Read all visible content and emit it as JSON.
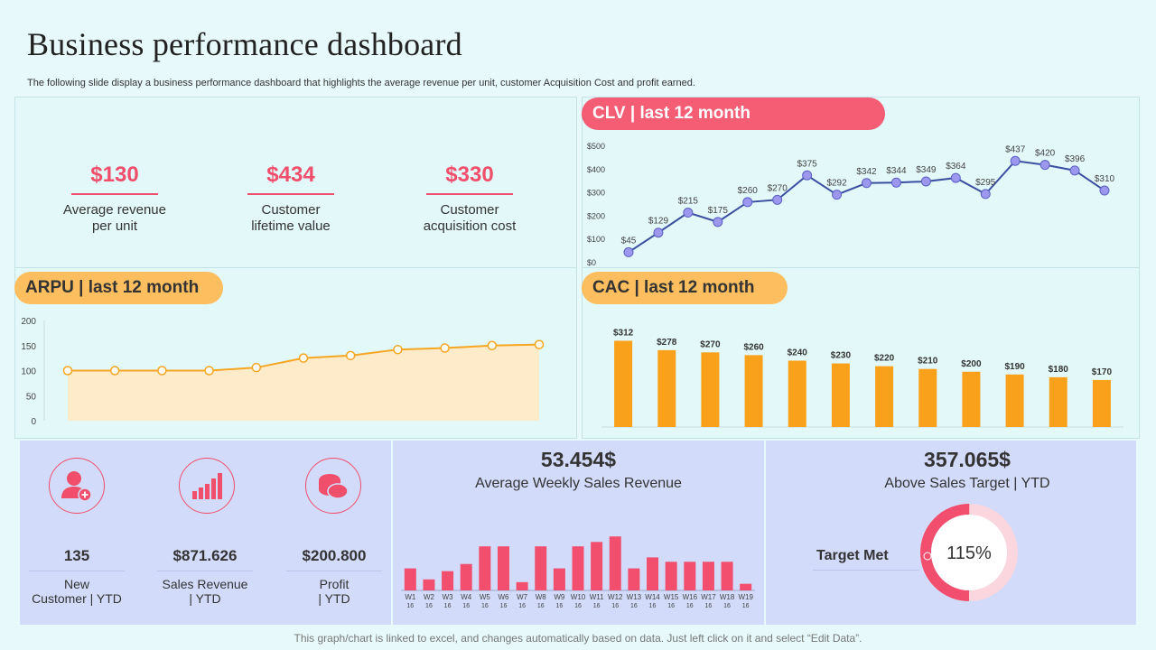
{
  "title": "Business performance dashboard",
  "subtitle": "The following slide display a business performance dashboard that highlights the average revenue per unit, customer Acquisition Cost and profit earned.",
  "kpis": [
    {
      "value": "$130",
      "label1": "Average revenue",
      "label2": "per unit"
    },
    {
      "value": "$434",
      "label1": "Customer",
      "label2": "lifetime value"
    },
    {
      "value": "$330",
      "label1": "Customer",
      "label2": "acquisition cost"
    }
  ],
  "colors": {
    "accent_red": "#f45d74",
    "accent_orange": "#fcbe5e",
    "line_blue": "#3a4fa0",
    "bar_orange": "#f9a11b",
    "arpu_line": "#f5a623"
  },
  "stats": [
    {
      "value": "135",
      "label1": "New",
      "label2": "Customer | YTD",
      "icon": "user-add-icon"
    },
    {
      "value": "$871.626",
      "label1": "Sales Revenue",
      "label2": "| YTD",
      "icon": "bar-chart-icon"
    },
    {
      "value": "$200.800",
      "label1": "Profit",
      "label2": "| YTD",
      "icon": "coins-icon"
    }
  ],
  "weekly": {
    "value": "53.454$",
    "label": "Average Weekly Sales Revenue"
  },
  "target": {
    "value": "357.065$",
    "label": "Above Sales Target | YTD",
    "met_label": "Target Met",
    "percent_text": "115%",
    "percent": 115
  },
  "footer": "This graph/chart is linked to excel, and changes automatically based on data. Just left click on it and select “Edit Data”.",
  "chart_data": [
    {
      "id": "clv",
      "type": "line",
      "title": "CLV | last 12 month",
      "values": [
        45,
        129,
        215,
        175,
        260,
        270,
        375,
        292,
        342,
        344,
        349,
        364,
        295,
        437,
        420,
        396,
        310
      ],
      "labels": [
        "$45",
        "$129",
        "$215",
        "$175",
        "$260",
        "$270",
        "$375",
        "$292",
        "$342",
        "$344",
        "$349",
        "$364",
        "$295",
        "$437",
        "$420",
        "$396",
        "$310"
      ],
      "yticks": [
        "$0",
        "$100",
        "$200",
        "$300",
        "$400",
        "$500"
      ],
      "ylim": [
        0,
        500
      ]
    },
    {
      "id": "arpu",
      "type": "area",
      "title": "ARPU | last 12 month",
      "values": [
        100,
        100,
        100,
        100,
        106,
        125,
        130,
        142,
        145,
        150,
        152
      ],
      "yticks": [
        "0",
        "50",
        "100",
        "150",
        "200"
      ],
      "ylim": [
        0,
        200
      ]
    },
    {
      "id": "cac",
      "type": "bar",
      "title": "CAC | last 12 month",
      "values": [
        312,
        278,
        270,
        260,
        240,
        230,
        220,
        210,
        200,
        190,
        180,
        170
      ],
      "labels": [
        "$312",
        "$278",
        "$270",
        "$260",
        "$240",
        "$230",
        "$220",
        "$210",
        "$200",
        "$190",
        "$180",
        "$170"
      ],
      "ylim": [
        0,
        320
      ]
    },
    {
      "id": "weekly",
      "type": "bar",
      "title": "Average Weekly Sales Revenue",
      "categories": [
        "W1",
        "W2",
        "W3",
        "W4",
        "W5",
        "W6",
        "W7",
        "W8",
        "W9",
        "W10",
        "W11",
        "W12",
        "W13",
        "W14",
        "W15",
        "W16",
        "W17",
        "W18",
        "W19"
      ],
      "category_sub": "16",
      "values": [
        40,
        20,
        35,
        48,
        80,
        80,
        15,
        80,
        40,
        80,
        88,
        98,
        40,
        60,
        52,
        52,
        52,
        52,
        12
      ],
      "ylim": [
        0,
        100
      ]
    },
    {
      "id": "target",
      "type": "pie",
      "title": "Target Met",
      "values": [
        115
      ],
      "labels": [
        "115%"
      ]
    }
  ]
}
